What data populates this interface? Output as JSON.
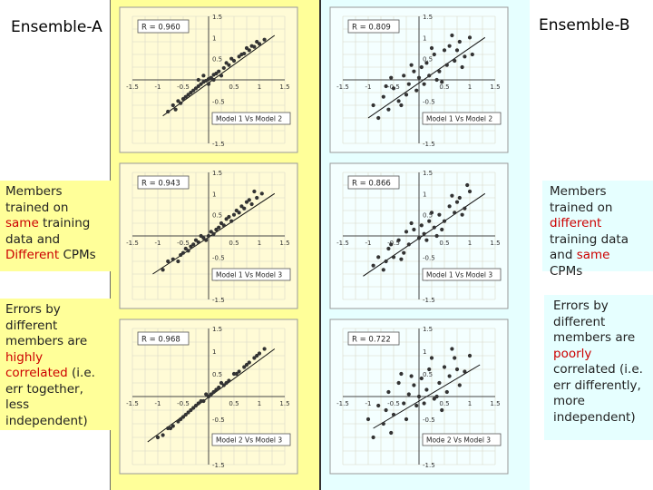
{
  "left": {
    "title": "Ensemble-A",
    "caption1": {
      "pre": "Members trained on ",
      "hl1": "same",
      "mid": " training data and ",
      "hl2": "Different",
      "post": " CPMs"
    },
    "caption2": {
      "pre": "Errors by different members are ",
      "hl1": "highly correlated",
      "post": " (i.e. err together, less independent)"
    }
  },
  "right": {
    "title": "Ensemble-B",
    "caption1": {
      "pre": "Members trained on ",
      "hl1": "different",
      "mid": " training data and ",
      "hl2": "same",
      "post": " CPMs"
    },
    "caption2": {
      "pre": "Errors by different members are ",
      "hl1": "poorly",
      "post": " correlated (i.e. err differently, more independent)"
    }
  },
  "colors": {
    "left_bg": "#ffff99",
    "right_bg": "#e6ffff",
    "highlight": "#cc0000",
    "points": "#333333"
  },
  "chart_data": [
    {
      "type": "scatter",
      "ensemble": "A",
      "legend": "Model 1 Vs Model 2",
      "r_label": "R = 0.960",
      "xticks": [
        "-1.5",
        "-1",
        "-0.5",
        "0.5",
        "1",
        "1.5"
      ],
      "yticks": [
        "1.5",
        "1",
        "0.5",
        "-0.5",
        "-1",
        "-1.5"
      ],
      "xlim": [
        -1.5,
        1.5
      ],
      "ylim": [
        -1.5,
        1.5
      ],
      "fit": [
        [
          -0.9,
          -0.85
        ],
        [
          1.3,
          1.05
        ]
      ],
      "points": [
        [
          -0.8,
          -0.75
        ],
        [
          -0.7,
          -0.6
        ],
        [
          -0.6,
          -0.5
        ],
        [
          -0.5,
          -0.45
        ],
        [
          -0.4,
          -0.35
        ],
        [
          -0.35,
          -0.3
        ],
        [
          -0.3,
          -0.25
        ],
        [
          -0.25,
          -0.2
        ],
        [
          -0.2,
          -0.15
        ],
        [
          -0.15,
          -0.1
        ],
        [
          -0.1,
          -0.05
        ],
        [
          -0.05,
          -0.02
        ],
        [
          0,
          0.02
        ],
        [
          0.05,
          0.05
        ],
        [
          0.1,
          0.12
        ],
        [
          0.15,
          0.15
        ],
        [
          0.2,
          0.2
        ],
        [
          0.3,
          0.28
        ],
        [
          0.4,
          0.35
        ],
        [
          0.5,
          0.45
        ],
        [
          0.6,
          0.55
        ],
        [
          0.7,
          0.62
        ],
        [
          0.8,
          0.7
        ],
        [
          0.9,
          0.78
        ],
        [
          1.0,
          0.85
        ],
        [
          1.1,
          0.95
        ],
        [
          -0.55,
          -0.55
        ],
        [
          -0.45,
          -0.4
        ],
        [
          -0.2,
          0.0
        ],
        [
          0.0,
          -0.1
        ],
        [
          0.25,
          0.1
        ],
        [
          0.35,
          0.4
        ],
        [
          0.65,
          0.6
        ],
        [
          0.85,
          0.8
        ],
        [
          -0.65,
          -0.7
        ],
        [
          0.1,
          0.0
        ],
        [
          -0.1,
          0.1
        ],
        [
          0.45,
          0.5
        ],
        [
          0.75,
          0.75
        ],
        [
          0.95,
          0.9
        ]
      ]
    },
    {
      "type": "scatter",
      "ensemble": "B",
      "legend": "Model 1 Vs Model 2",
      "r_label": "R = 0.809",
      "xticks": [
        "-1.5",
        "-1",
        "-0.5",
        "0.5",
        "1",
        "1.5"
      ],
      "yticks": [
        "1.5",
        "1",
        "0.5",
        "-0.5",
        "-1",
        "-1.5"
      ],
      "xlim": [
        -1.5,
        1.5
      ],
      "ylim": [
        -1.5,
        1.5
      ],
      "fit": [
        [
          -1.0,
          -0.9
        ],
        [
          1.3,
          1.0
        ]
      ],
      "points": [
        [
          -0.9,
          -0.6
        ],
        [
          -0.8,
          -0.9
        ],
        [
          -0.7,
          -0.4
        ],
        [
          -0.6,
          -0.7
        ],
        [
          -0.5,
          -0.2
        ],
        [
          -0.4,
          -0.5
        ],
        [
          -0.3,
          0.1
        ],
        [
          -0.25,
          -0.35
        ],
        [
          -0.2,
          -0.1
        ],
        [
          -0.1,
          0.2
        ],
        [
          -0.05,
          -0.25
        ],
        [
          0,
          0.05
        ],
        [
          0.05,
          0.3
        ],
        [
          0.1,
          -0.1
        ],
        [
          0.15,
          0.4
        ],
        [
          0.2,
          0.1
        ],
        [
          0.3,
          0.6
        ],
        [
          0.4,
          0.2
        ],
        [
          0.5,
          0.7
        ],
        [
          0.55,
          0.35
        ],
        [
          0.6,
          0.8
        ],
        [
          0.7,
          0.45
        ],
        [
          0.8,
          0.9
        ],
        [
          0.9,
          0.55
        ],
        [
          1.0,
          1.0
        ],
        [
          1.05,
          0.6
        ],
        [
          -0.55,
          0.05
        ],
        [
          -0.35,
          -0.6
        ],
        [
          0.25,
          0.75
        ],
        [
          0.45,
          -0.05
        ],
        [
          0.65,
          1.05
        ],
        [
          0.85,
          0.3
        ],
        [
          -0.15,
          0.35
        ],
        [
          0.35,
          0.0
        ],
        [
          -0.65,
          -0.15
        ],
        [
          0.75,
          0.7
        ]
      ]
    },
    {
      "type": "scatter",
      "ensemble": "A",
      "legend": "Model 1 Vs Model 3",
      "r_label": "R = 0.943",
      "xticks": [
        "-1.5",
        "-1",
        "-0.5",
        "0.5",
        "1",
        "1.5"
      ],
      "yticks": [
        "1.5",
        "1",
        "0.5",
        "-0.5",
        "-1",
        "-1.5"
      ],
      "xlim": [
        -1.5,
        1.5
      ],
      "ylim": [
        -1.5,
        1.5
      ],
      "fit": [
        [
          -1.1,
          -0.9
        ],
        [
          1.3,
          1.0
        ]
      ],
      "points": [
        [
          -0.9,
          -0.8
        ],
        [
          -0.8,
          -0.6
        ],
        [
          -0.7,
          -0.55
        ],
        [
          -0.6,
          -0.6
        ],
        [
          -0.5,
          -0.4
        ],
        [
          -0.45,
          -0.3
        ],
        [
          -0.4,
          -0.35
        ],
        [
          -0.3,
          -0.2
        ],
        [
          -0.25,
          -0.1
        ],
        [
          -0.2,
          -0.15
        ],
        [
          -0.1,
          -0.05
        ],
        [
          0,
          0.0
        ],
        [
          0.05,
          0.1
        ],
        [
          0.1,
          0.05
        ],
        [
          0.2,
          0.2
        ],
        [
          0.3,
          0.25
        ],
        [
          0.35,
          0.4
        ],
        [
          0.45,
          0.35
        ],
        [
          0.5,
          0.5
        ],
        [
          0.6,
          0.55
        ],
        [
          0.7,
          0.65
        ],
        [
          0.75,
          0.8
        ],
        [
          0.85,
          0.75
        ],
        [
          0.95,
          0.9
        ],
        [
          1.05,
          1.0
        ],
        [
          -0.55,
          -0.45
        ],
        [
          -0.35,
          -0.25
        ],
        [
          -0.15,
          0.0
        ],
        [
          0.15,
          0.15
        ],
        [
          0.25,
          0.3
        ],
        [
          0.4,
          0.45
        ],
        [
          0.55,
          0.6
        ],
        [
          0.65,
          0.7
        ],
        [
          0.8,
          0.85
        ],
        [
          0.9,
          1.05
        ],
        [
          -0.05,
          -0.1
        ]
      ]
    },
    {
      "type": "scatter",
      "ensemble": "B",
      "legend": "Model 1 Vs Model 3",
      "r_label": "R = 0.866",
      "xticks": [
        "-1.5",
        "-1",
        "-0.5",
        "0.5",
        "1",
        "1.5"
      ],
      "yticks": [
        "1.5",
        "1",
        "0.5",
        "-0.5",
        "-1",
        "-1.5"
      ],
      "xlim": [
        -1.5,
        1.5
      ],
      "ylim": [
        -1.5,
        1.5
      ],
      "fit": [
        [
          -1.1,
          -0.95
        ],
        [
          1.3,
          1.0
        ]
      ],
      "points": [
        [
          -0.9,
          -0.7
        ],
        [
          -0.8,
          -0.5
        ],
        [
          -0.7,
          -0.8
        ],
        [
          -0.6,
          -0.3
        ],
        [
          -0.5,
          -0.5
        ],
        [
          -0.4,
          -0.1
        ],
        [
          -0.3,
          -0.4
        ],
        [
          -0.25,
          0.1
        ],
        [
          -0.2,
          -0.2
        ],
        [
          -0.1,
          0.15
        ],
        [
          0,
          -0.05
        ],
        [
          0.05,
          0.25
        ],
        [
          0.1,
          0.05
        ],
        [
          0.2,
          0.35
        ],
        [
          0.3,
          0.2
        ],
        [
          0.4,
          0.5
        ],
        [
          0.5,
          0.35
        ],
        [
          0.6,
          0.7
        ],
        [
          0.7,
          0.55
        ],
        [
          0.8,
          0.9
        ],
        [
          0.9,
          0.65
        ],
        [
          1.0,
          1.05
        ],
        [
          -0.55,
          -0.2
        ],
        [
          -0.35,
          -0.55
        ],
        [
          0.25,
          0.55
        ],
        [
          0.45,
          0.15
        ],
        [
          0.65,
          0.95
        ],
        [
          0.85,
          0.5
        ],
        [
          -0.15,
          0.3
        ],
        [
          0.35,
          0.0
        ],
        [
          -0.65,
          -0.6
        ],
        [
          0.75,
          0.8
        ],
        [
          0.95,
          1.2
        ],
        [
          0.15,
          -0.1
        ]
      ]
    },
    {
      "type": "scatter",
      "ensemble": "A",
      "legend": "Model 2 Vs Model 3",
      "r_label": "R = 0.968",
      "xticks": [
        "-1.5",
        "-1",
        "-0.5",
        "0.5",
        "1",
        "1.5"
      ],
      "yticks": [
        "1.5",
        "1",
        "0.5",
        "-0.5",
        "-1",
        "-1.5"
      ],
      "xlim": [
        -1.5,
        1.5
      ],
      "ylim": [
        -1.5,
        1.5
      ],
      "fit": [
        [
          -1.2,
          -1.0
        ],
        [
          1.3,
          1.05
        ]
      ],
      "points": [
        [
          -1.0,
          -0.9
        ],
        [
          -0.9,
          -0.85
        ],
        [
          -0.8,
          -0.7
        ],
        [
          -0.7,
          -0.65
        ],
        [
          -0.6,
          -0.55
        ],
        [
          -0.5,
          -0.45
        ],
        [
          -0.45,
          -0.4
        ],
        [
          -0.4,
          -0.35
        ],
        [
          -0.3,
          -0.25
        ],
        [
          -0.25,
          -0.2
        ],
        [
          -0.2,
          -0.15
        ],
        [
          -0.1,
          -0.1
        ],
        [
          0,
          0.0
        ],
        [
          0.05,
          0.05
        ],
        [
          0.1,
          0.1
        ],
        [
          0.2,
          0.2
        ],
        [
          0.3,
          0.25
        ],
        [
          0.4,
          0.35
        ],
        [
          0.5,
          0.5
        ],
        [
          0.6,
          0.55
        ],
        [
          0.7,
          0.65
        ],
        [
          0.8,
          0.75
        ],
        [
          0.9,
          0.85
        ],
        [
          1.0,
          0.95
        ],
        [
          1.1,
          1.05
        ],
        [
          -0.55,
          -0.5
        ],
        [
          -0.35,
          -0.3
        ],
        [
          -0.15,
          -0.1
        ],
        [
          0.15,
          0.15
        ],
        [
          0.35,
          0.3
        ],
        [
          0.55,
          0.5
        ],
        [
          0.75,
          0.7
        ],
        [
          0.95,
          0.9
        ],
        [
          -0.75,
          -0.7
        ],
        [
          0.25,
          0.3
        ],
        [
          -0.05,
          0.05
        ]
      ]
    },
    {
      "type": "scatter",
      "ensemble": "B",
      "legend": "Mode 2 Vs Model 3",
      "r_label": "R = 0.722",
      "xticks": [
        "-1.5",
        "-1",
        "-0.5",
        "0.5",
        "1",
        "1.5"
      ],
      "yticks": [
        "1.5",
        "1",
        "0.5",
        "-0.5",
        "-1",
        "-1.5"
      ],
      "xlim": [
        -1.5,
        1.5
      ],
      "ylim": [
        -1.5,
        1.5
      ],
      "fit": [
        [
          -0.9,
          -0.7
        ],
        [
          1.2,
          0.7
        ]
      ],
      "points": [
        [
          -1.0,
          -0.5
        ],
        [
          -0.9,
          -0.9
        ],
        [
          -0.8,
          -0.2
        ],
        [
          -0.7,
          -0.6
        ],
        [
          -0.6,
          0.1
        ],
        [
          -0.5,
          -0.4
        ],
        [
          -0.4,
          0.3
        ],
        [
          -0.3,
          -0.15
        ],
        [
          -0.25,
          -0.5
        ],
        [
          -0.2,
          0.05
        ],
        [
          -0.1,
          0.25
        ],
        [
          -0.05,
          -0.2
        ],
        [
          0,
          0.0
        ],
        [
          0.05,
          0.4
        ],
        [
          0.1,
          -0.15
        ],
        [
          0.15,
          0.15
        ],
        [
          0.2,
          0.6
        ],
        [
          0.3,
          -0.05
        ],
        [
          0.4,
          0.3
        ],
        [
          0.5,
          0.65
        ],
        [
          0.55,
          0.1
        ],
        [
          0.6,
          0.45
        ],
        [
          0.7,
          0.85
        ],
        [
          0.8,
          0.25
        ],
        [
          0.9,
          0.55
        ],
        [
          1.0,
          0.9
        ],
        [
          -0.55,
          -0.8
        ],
        [
          -0.35,
          0.5
        ],
        [
          0.25,
          0.85
        ],
        [
          0.45,
          -0.3
        ],
        [
          0.65,
          1.05
        ],
        [
          -0.15,
          0.45
        ],
        [
          0.35,
          0.0
        ],
        [
          -0.65,
          -0.3
        ],
        [
          0.75,
          0.6
        ]
      ]
    }
  ]
}
